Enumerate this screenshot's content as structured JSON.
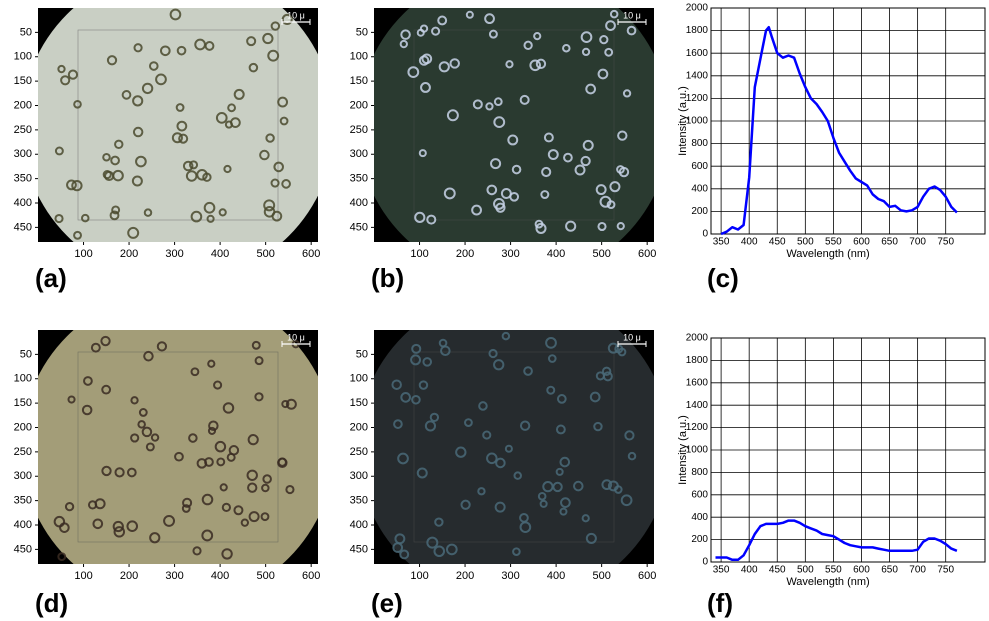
{
  "chart_data": [
    {
      "type": "image",
      "label": "(a)",
      "scale_bar": "10 μ",
      "field_color": "#c9cfc4",
      "cell_color": "#4a4a2e",
      "xlim": [
        0,
        615
      ],
      "ylim": [
        0,
        480
      ],
      "y_inverted": true,
      "xticks": [
        100,
        200,
        300,
        400,
        500,
        600
      ],
      "yticks": [
        50,
        100,
        150,
        200,
        250,
        300,
        350,
        400,
        450
      ]
    },
    {
      "type": "image",
      "label": "(b)",
      "scale_bar": "10 μ",
      "field_color": "#2a3a30",
      "cell_color": "#c8d4e8",
      "xlim": [
        0,
        615
      ],
      "ylim": [
        0,
        480
      ],
      "y_inverted": true,
      "xticks": [
        100,
        200,
        300,
        400,
        500,
        600
      ],
      "yticks": [
        50,
        100,
        150,
        200,
        250,
        300,
        350,
        400,
        450
      ]
    },
    {
      "type": "line",
      "label": "(c)",
      "xlabel": "Wavelength (nm)",
      "ylabel": "Intensity (a.u.)",
      "color": "#0000ff",
      "grid": true,
      "x": [
        350,
        360,
        370,
        380,
        390,
        400,
        410,
        420,
        430,
        435,
        440,
        450,
        460,
        470,
        480,
        490,
        500,
        510,
        520,
        530,
        540,
        550,
        560,
        570,
        580,
        590,
        600,
        610,
        620,
        630,
        640,
        650,
        660,
        670,
        680,
        690,
        700,
        710,
        720,
        730,
        740,
        750,
        760,
        770
      ],
      "values": [
        0,
        20,
        60,
        40,
        80,
        500,
        1300,
        1550,
        1800,
        1830,
        1750,
        1600,
        1560,
        1580,
        1560,
        1420,
        1300,
        1200,
        1150,
        1080,
        1000,
        850,
        720,
        640,
        560,
        490,
        460,
        430,
        350,
        310,
        290,
        240,
        250,
        210,
        200,
        210,
        240,
        330,
        400,
        420,
        390,
        330,
        240,
        190
      ],
      "xlim": [
        332,
        820
      ],
      "ylim": [
        0,
        2000
      ],
      "xticks": [
        350,
        400,
        450,
        500,
        550,
        600,
        650,
        700,
        750
      ],
      "yticks": [
        0,
        200,
        400,
        600,
        800,
        1000,
        1200,
        1400,
        1600,
        1800,
        2000
      ]
    },
    {
      "type": "image",
      "label": "(d)",
      "scale_bar": "10 μ",
      "field_color": "#a39d78",
      "cell_color": "#3a2c22",
      "xlim": [
        0,
        615
      ],
      "ylim": [
        0,
        480
      ],
      "y_inverted": true,
      "xticks": [
        100,
        200,
        300,
        400,
        500,
        600
      ],
      "yticks": [
        50,
        100,
        150,
        200,
        250,
        300,
        350,
        400,
        450
      ]
    },
    {
      "type": "image",
      "label": "(e)",
      "scale_bar": "10 μ",
      "field_color": "#262b2e",
      "cell_color": "#4a6a78",
      "xlim": [
        0,
        615
      ],
      "ylim": [
        0,
        480
      ],
      "y_inverted": true,
      "xticks": [
        100,
        200,
        300,
        400,
        500,
        600
      ],
      "yticks": [
        50,
        100,
        150,
        200,
        250,
        300,
        350,
        400,
        450
      ]
    },
    {
      "type": "line",
      "label": "(f)",
      "xlabel": "Wavelength (nm)",
      "ylabel": "Intensity (a.u.)",
      "color": "#0000ff",
      "grid": true,
      "x": [
        340,
        350,
        360,
        370,
        380,
        390,
        400,
        410,
        420,
        430,
        440,
        450,
        460,
        470,
        480,
        490,
        500,
        510,
        520,
        530,
        540,
        550,
        560,
        570,
        580,
        590,
        600,
        610,
        620,
        630,
        640,
        650,
        660,
        670,
        680,
        690,
        700,
        710,
        720,
        730,
        740,
        750,
        760,
        770
      ],
      "values": [
        40,
        40,
        40,
        20,
        20,
        60,
        150,
        250,
        320,
        340,
        340,
        340,
        350,
        370,
        370,
        350,
        320,
        300,
        280,
        250,
        240,
        230,
        200,
        170,
        150,
        140,
        130,
        130,
        130,
        120,
        110,
        100,
        100,
        100,
        100,
        100,
        110,
        180,
        210,
        210,
        190,
        160,
        120,
        100
      ],
      "xlim": [
        332,
        820
      ],
      "ylim": [
        0,
        2000
      ],
      "xticks": [
        350,
        400,
        450,
        500,
        550,
        600,
        650,
        700,
        750
      ],
      "yticks": [
        0,
        200,
        400,
        600,
        800,
        1000,
        1200,
        1400,
        1600,
        1800,
        2000
      ]
    }
  ]
}
